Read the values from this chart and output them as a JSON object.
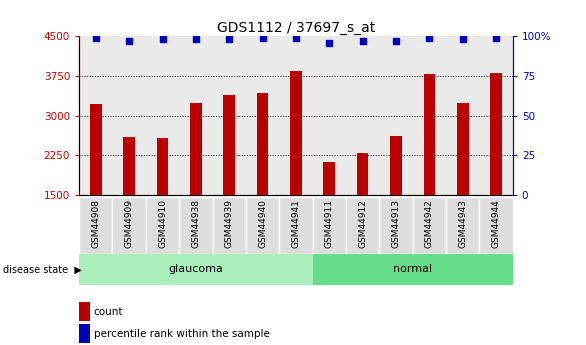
{
  "title": "GDS1112 / 37697_s_at",
  "samples": [
    "GSM44908",
    "GSM44909",
    "GSM44910",
    "GSM44938",
    "GSM44939",
    "GSM44940",
    "GSM44941",
    "GSM44911",
    "GSM44912",
    "GSM44913",
    "GSM44942",
    "GSM44943",
    "GSM44944"
  ],
  "counts": [
    3220,
    2600,
    2570,
    3240,
    3380,
    3430,
    3850,
    2130,
    2290,
    2610,
    3780,
    3240,
    3800
  ],
  "percentiles": [
    99,
    97,
    98,
    98,
    98,
    99,
    99,
    96,
    97,
    97,
    99,
    98,
    99
  ],
  "groups": [
    "glaucoma",
    "glaucoma",
    "glaucoma",
    "glaucoma",
    "glaucoma",
    "glaucoma",
    "glaucoma",
    "normal",
    "normal",
    "normal",
    "normal",
    "normal",
    "normal"
  ],
  "ylim_left": [
    1500,
    4500
  ],
  "ylim_right": [
    0,
    100
  ],
  "yticks_left": [
    1500,
    2250,
    3000,
    3750,
    4500
  ],
  "yticks_right": [
    0,
    25,
    50,
    75,
    100
  ],
  "bar_color": "#bb0000",
  "dot_color": "#0000bb",
  "glaucoma_color": "#aaeebb",
  "normal_color": "#66dd88",
  "left_tick_color": "#cc0000",
  "right_tick_color": "#0000cc",
  "bar_background": "#dddddd",
  "legend_count": "count",
  "legend_percentile": "percentile rank within the sample"
}
